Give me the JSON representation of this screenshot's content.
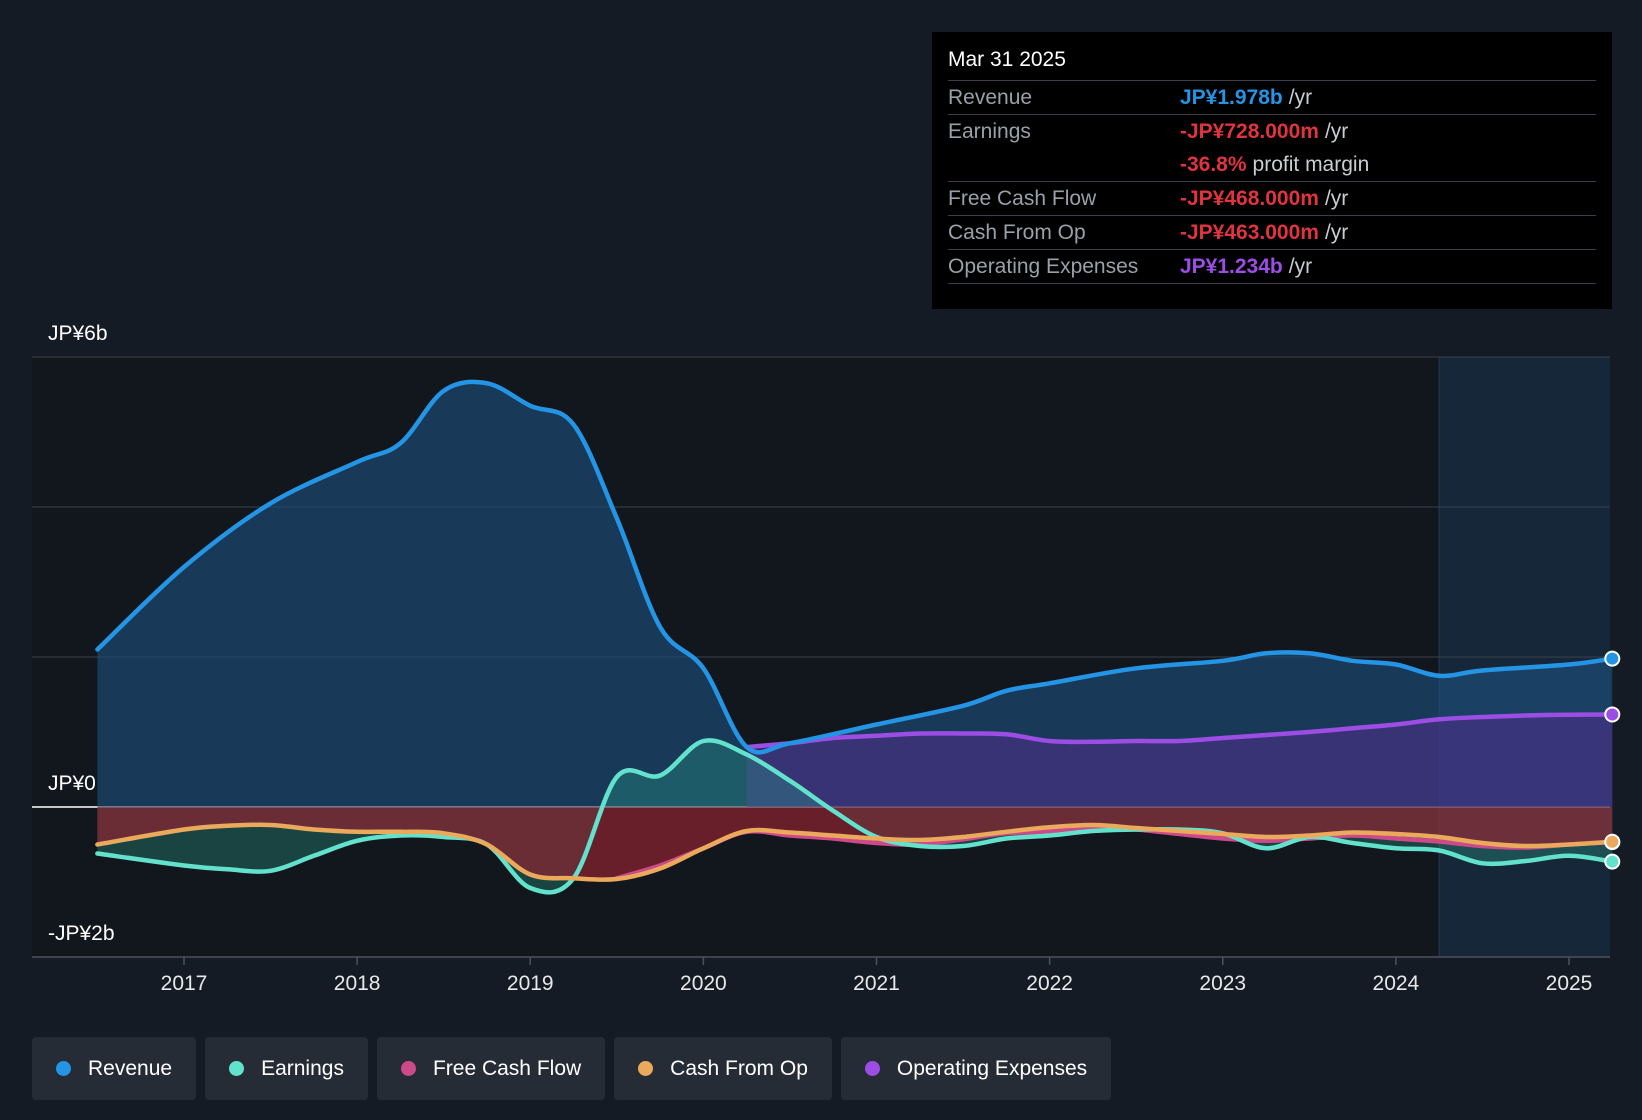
{
  "chart_data": {
    "type": "line",
    "title": "",
    "ylabel_top": "JP¥6b",
    "ylabel_zero": "JP¥0",
    "ylabel_bottom": "-JP¥2b",
    "ylim": [
      -2.0,
      6.0
    ],
    "xlim": [
      2016.0,
      2025.25
    ],
    "gridlines": [
      6,
      4,
      2,
      0,
      -2
    ],
    "forecast_start": 2024.25,
    "x_ticks": [
      {
        "value": 2017,
        "label": "2017"
      },
      {
        "value": 2018,
        "label": "2018"
      },
      {
        "value": 2019,
        "label": "2019"
      },
      {
        "value": 2020,
        "label": "2020"
      },
      {
        "value": 2021,
        "label": "2021"
      },
      {
        "value": 2022,
        "label": "2022"
      },
      {
        "value": 2023,
        "label": "2023"
      },
      {
        "value": 2024,
        "label": "2024"
      },
      {
        "value": 2025,
        "label": "2025"
      }
    ],
    "series": [
      {
        "name": "Revenue",
        "color": "#2494e4",
        "fill": "#1a4a70",
        "points": [
          [
            2016.5,
            2.1
          ],
          [
            2017.0,
            3.2
          ],
          [
            2017.5,
            4.05
          ],
          [
            2018.0,
            4.6
          ],
          [
            2018.25,
            4.85
          ],
          [
            2018.5,
            5.55
          ],
          [
            2018.75,
            5.65
          ],
          [
            2019.0,
            5.35
          ],
          [
            2019.25,
            5.1
          ],
          [
            2019.5,
            3.85
          ],
          [
            2019.75,
            2.4
          ],
          [
            2020.0,
            1.85
          ],
          [
            2020.25,
            0.8
          ],
          [
            2020.5,
            0.85
          ],
          [
            2021.0,
            1.1
          ],
          [
            2021.5,
            1.35
          ],
          [
            2021.75,
            1.55
          ],
          [
            2022.0,
            1.65
          ],
          [
            2022.5,
            1.85
          ],
          [
            2023.0,
            1.95
          ],
          [
            2023.25,
            2.05
          ],
          [
            2023.5,
            2.05
          ],
          [
            2023.75,
            1.95
          ],
          [
            2024.0,
            1.9
          ],
          [
            2024.25,
            1.75
          ],
          [
            2024.5,
            1.82
          ],
          [
            2025.0,
            1.9
          ],
          [
            2025.25,
            1.978
          ]
        ]
      },
      {
        "name": "Earnings",
        "color": "#62e2cc",
        "points": [
          [
            2016.5,
            -0.62
          ],
          [
            2017.0,
            -0.78
          ],
          [
            2017.25,
            -0.83
          ],
          [
            2017.5,
            -0.85
          ],
          [
            2017.75,
            -0.65
          ],
          [
            2018.0,
            -0.45
          ],
          [
            2018.25,
            -0.38
          ],
          [
            2018.5,
            -0.4
          ],
          [
            2018.75,
            -0.5
          ],
          [
            2019.0,
            -1.08
          ],
          [
            2019.25,
            -0.95
          ],
          [
            2019.5,
            0.4
          ],
          [
            2019.75,
            0.42
          ],
          [
            2020.0,
            0.88
          ],
          [
            2020.25,
            0.7
          ],
          [
            2020.5,
            0.35
          ],
          [
            2020.75,
            -0.05
          ],
          [
            2021.0,
            -0.4
          ],
          [
            2021.25,
            -0.52
          ],
          [
            2021.5,
            -0.52
          ],
          [
            2021.75,
            -0.42
          ],
          [
            2022.0,
            -0.38
          ],
          [
            2022.25,
            -0.32
          ],
          [
            2022.5,
            -0.3
          ],
          [
            2022.75,
            -0.3
          ],
          [
            2023.0,
            -0.35
          ],
          [
            2023.25,
            -0.55
          ],
          [
            2023.5,
            -0.4
          ],
          [
            2023.75,
            -0.48
          ],
          [
            2024.0,
            -0.55
          ],
          [
            2024.25,
            -0.58
          ],
          [
            2024.5,
            -0.75
          ],
          [
            2024.75,
            -0.72
          ],
          [
            2025.0,
            -0.65
          ],
          [
            2025.25,
            -0.728
          ]
        ]
      },
      {
        "name": "Free Cash Flow",
        "color": "#cc4a8a",
        "points": [
          [
            2019.5,
            -0.95
          ],
          [
            2019.75,
            -0.78
          ],
          [
            2020.0,
            -0.55
          ],
          [
            2020.25,
            -0.33
          ],
          [
            2020.5,
            -0.38
          ],
          [
            2020.75,
            -0.42
          ],
          [
            2021.0,
            -0.48
          ],
          [
            2021.25,
            -0.5
          ],
          [
            2021.5,
            -0.43
          ],
          [
            2021.75,
            -0.35
          ],
          [
            2022.0,
            -0.33
          ],
          [
            2022.25,
            -0.28
          ],
          [
            2022.5,
            -0.3
          ],
          [
            2022.75,
            -0.36
          ],
          [
            2023.0,
            -0.42
          ],
          [
            2023.25,
            -0.45
          ],
          [
            2023.5,
            -0.42
          ],
          [
            2023.75,
            -0.38
          ],
          [
            2024.0,
            -0.42
          ],
          [
            2024.25,
            -0.46
          ],
          [
            2024.5,
            -0.52
          ],
          [
            2024.75,
            -0.54
          ],
          [
            2025.0,
            -0.5
          ],
          [
            2025.25,
            -0.468
          ]
        ]
      },
      {
        "name": "Cash From Op",
        "color": "#eaa95b",
        "points": [
          [
            2016.5,
            -0.5
          ],
          [
            2017.0,
            -0.3
          ],
          [
            2017.25,
            -0.25
          ],
          [
            2017.5,
            -0.24
          ],
          [
            2017.75,
            -0.3
          ],
          [
            2018.0,
            -0.33
          ],
          [
            2018.25,
            -0.33
          ],
          [
            2018.5,
            -0.35
          ],
          [
            2018.75,
            -0.5
          ],
          [
            2019.0,
            -0.9
          ],
          [
            2019.25,
            -0.95
          ],
          [
            2019.5,
            -0.96
          ],
          [
            2019.75,
            -0.82
          ],
          [
            2020.0,
            -0.55
          ],
          [
            2020.25,
            -0.32
          ],
          [
            2020.5,
            -0.34
          ],
          [
            2020.75,
            -0.38
          ],
          [
            2021.0,
            -0.42
          ],
          [
            2021.25,
            -0.44
          ],
          [
            2021.5,
            -0.4
          ],
          [
            2021.75,
            -0.33
          ],
          [
            2022.0,
            -0.27
          ],
          [
            2022.25,
            -0.24
          ],
          [
            2022.5,
            -0.28
          ],
          [
            2022.75,
            -0.32
          ],
          [
            2023.0,
            -0.36
          ],
          [
            2023.25,
            -0.4
          ],
          [
            2023.5,
            -0.38
          ],
          [
            2023.75,
            -0.34
          ],
          [
            2024.0,
            -0.36
          ],
          [
            2024.25,
            -0.4
          ],
          [
            2024.5,
            -0.48
          ],
          [
            2024.75,
            -0.52
          ],
          [
            2025.0,
            -0.5
          ],
          [
            2025.25,
            -0.463
          ]
        ]
      },
      {
        "name": "Operating Expenses",
        "color": "#9b4de4",
        "fill": "#3e2a6e",
        "points": [
          [
            2020.25,
            0.8
          ],
          [
            2020.5,
            0.85
          ],
          [
            2020.75,
            0.92
          ],
          [
            2021.0,
            0.95
          ],
          [
            2021.25,
            0.98
          ],
          [
            2021.5,
            0.98
          ],
          [
            2021.75,
            0.97
          ],
          [
            2022.0,
            0.88
          ],
          [
            2022.25,
            0.87
          ],
          [
            2022.5,
            0.88
          ],
          [
            2022.75,
            0.88
          ],
          [
            2023.0,
            0.92
          ],
          [
            2023.25,
            0.96
          ],
          [
            2023.5,
            1.0
          ],
          [
            2023.75,
            1.05
          ],
          [
            2024.0,
            1.1
          ],
          [
            2024.25,
            1.17
          ],
          [
            2024.5,
            1.2
          ],
          [
            2024.75,
            1.22
          ],
          [
            2025.0,
            1.23
          ],
          [
            2025.25,
            1.234
          ]
        ]
      }
    ]
  },
  "tooltip": {
    "date": "Mar 31 2025",
    "rows": [
      {
        "label": "Revenue",
        "value": "JP¥1.978b",
        "unit": "/yr",
        "color": "#2494e4"
      },
      {
        "label": "Earnings",
        "value": "-JP¥728.000m",
        "unit": "/yr",
        "color": "#e0343e"
      },
      {
        "label": "",
        "value": "-36.8%",
        "unit": "profit margin",
        "color": "#e0343e"
      },
      {
        "label": "Free Cash Flow",
        "value": "-JP¥468.000m",
        "unit": "/yr",
        "color": "#e0343e"
      },
      {
        "label": "Cash From Op",
        "value": "-JP¥463.000m",
        "unit": "/yr",
        "color": "#e0343e"
      },
      {
        "label": "Operating Expenses",
        "value": "JP¥1.234b",
        "unit": "/yr",
        "color": "#9b4de4"
      }
    ]
  },
  "legend": [
    {
      "label": "Revenue",
      "color": "#2494e4"
    },
    {
      "label": "Earnings",
      "color": "#62e2cc"
    },
    {
      "label": "Free Cash Flow",
      "color": "#cc4a8a"
    },
    {
      "label": "Cash From Op",
      "color": "#eaa95b"
    },
    {
      "label": "Operating Expenses",
      "color": "#9b4de4"
    }
  ]
}
